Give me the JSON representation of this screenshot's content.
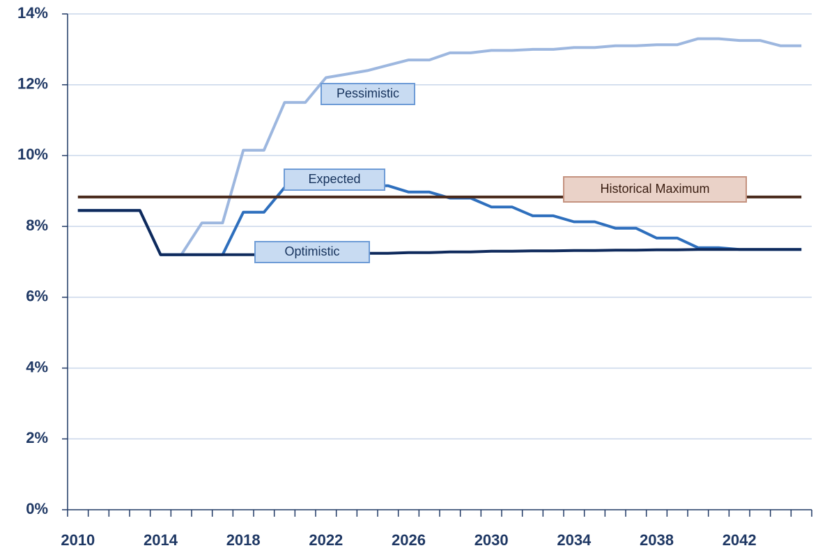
{
  "chart_data": {
    "type": "line",
    "categories": [
      "2010",
      null,
      null,
      null,
      "2014",
      null,
      null,
      null,
      "2018",
      null,
      null,
      null,
      "2022",
      null,
      null,
      null,
      "2026",
      null,
      null,
      null,
      "2030",
      null,
      null,
      null,
      "2034",
      null,
      null,
      null,
      "2038",
      null,
      null,
      null,
      "2042",
      null,
      null,
      null
    ],
    "series": [
      {
        "name": "Pessimistic",
        "color": "#9db7df",
        "values": [
          8.45,
          8.45,
          8.45,
          8.45,
          7.2,
          7.2,
          8.1,
          8.1,
          10.15,
          10.15,
          11.5,
          11.5,
          12.2,
          12.3,
          12.4,
          12.55,
          12.7,
          12.7,
          12.9,
          12.9,
          12.97,
          12.97,
          13.0,
          13.0,
          13.05,
          13.05,
          13.1,
          13.1,
          13.13,
          13.13,
          13.3,
          13.3,
          13.25,
          13.25,
          13.1,
          13.1
        ]
      },
      {
        "name": "Expected",
        "color": "#2e6fbd",
        "values": [
          8.45,
          8.45,
          8.45,
          8.45,
          7.2,
          7.2,
          7.2,
          7.2,
          8.4,
          8.4,
          9.1,
          9.1,
          9.15,
          9.15,
          9.15,
          9.15,
          8.97,
          8.97,
          8.8,
          8.8,
          8.55,
          8.55,
          8.3,
          8.3,
          8.13,
          8.13,
          7.95,
          7.95,
          7.67,
          7.67,
          7.4,
          7.4,
          7.35,
          7.35,
          7.35,
          7.35
        ]
      },
      {
        "name": "Optimistic",
        "color": "#0f2a5c",
        "values": [
          8.45,
          8.45,
          8.45,
          8.45,
          7.2,
          7.2,
          7.2,
          7.2,
          7.2,
          7.2,
          7.22,
          7.22,
          7.23,
          7.23,
          7.24,
          7.24,
          7.26,
          7.26,
          7.28,
          7.28,
          7.3,
          7.3,
          7.31,
          7.31,
          7.32,
          7.32,
          7.33,
          7.33,
          7.34,
          7.34,
          7.35,
          7.35,
          7.35,
          7.35,
          7.35,
          7.35
        ]
      },
      {
        "name": "Historical Maximum",
        "color": "#4a2a1c",
        "values": [
          8.83,
          8.83,
          8.83,
          8.83,
          8.83,
          8.83,
          8.83,
          8.83,
          8.83,
          8.83,
          8.83,
          8.83,
          8.83,
          8.83,
          8.83,
          8.83,
          8.83,
          8.83,
          8.83,
          8.83,
          8.83,
          8.83,
          8.83,
          8.83,
          8.83,
          8.83,
          8.83,
          8.83,
          8.83,
          8.83,
          8.83,
          8.83,
          8.83,
          8.83,
          8.83,
          8.83
        ]
      }
    ],
    "ylim": [
      0,
      14
    ],
    "yticks": [
      {
        "value": 0,
        "label": "0%"
      },
      {
        "value": 2,
        "label": "2%"
      },
      {
        "value": 4,
        "label": "4%"
      },
      {
        "value": 6,
        "label": "6%"
      },
      {
        "value": 8,
        "label": "8%"
      },
      {
        "value": 10,
        "label": "10%"
      },
      {
        "value": 12,
        "label": "12%"
      },
      {
        "value": 14,
        "label": "14%"
      }
    ],
    "grid": true
  }
}
